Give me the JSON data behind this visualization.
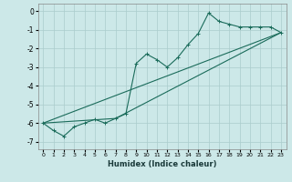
{
  "xlabel": "Humidex (Indice chaleur)",
  "background_color": "#cce8e8",
  "grid_color": "#aacccc",
  "line_color": "#1a6b5a",
  "xlim": [
    -0.5,
    23.5
  ],
  "ylim": [
    -7.4,
    0.4
  ],
  "xticks": [
    0,
    1,
    2,
    3,
    4,
    5,
    6,
    7,
    8,
    9,
    10,
    11,
    12,
    13,
    14,
    15,
    16,
    17,
    18,
    19,
    20,
    21,
    22,
    23
  ],
  "yticks": [
    0,
    -1,
    -2,
    -3,
    -4,
    -5,
    -6,
    -7
  ],
  "main_x": [
    0,
    1,
    2,
    3,
    4,
    5,
    6,
    7,
    8,
    9,
    10,
    11,
    12,
    13,
    14,
    15,
    16,
    17,
    18,
    19,
    20,
    21,
    22,
    23
  ],
  "main_y": [
    -6.0,
    -6.4,
    -6.7,
    -6.2,
    -6.0,
    -5.8,
    -6.0,
    -5.75,
    -5.5,
    -2.8,
    -2.3,
    -2.6,
    -3.0,
    -2.5,
    -1.8,
    -1.2,
    -0.1,
    -0.55,
    -0.7,
    -0.85,
    -0.85,
    -0.85,
    -0.85,
    -1.15
  ],
  "line2_x": [
    0,
    23
  ],
  "line2_y": [
    -6.0,
    -1.15
  ],
  "line3_x": [
    0,
    7,
    23
  ],
  "line3_y": [
    -6.0,
    -5.75,
    -1.15
  ]
}
